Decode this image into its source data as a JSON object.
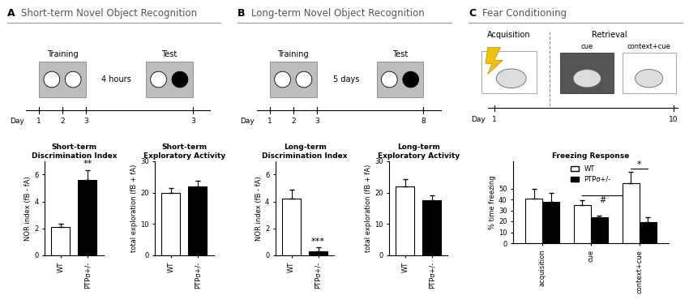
{
  "panels": [
    {
      "letter": "A",
      "title": "Short-term Novel Object Recognition",
      "schematic": {
        "kind": "nor",
        "phases": [
          "Training",
          "Test"
        ],
        "interval": "4 hours",
        "day_label": "Day",
        "days": [
          "1",
          "2",
          "3",
          "3"
        ]
      }
    },
    {
      "letter": "B",
      "title": "Long-term Novel Object Recognition",
      "schematic": {
        "kind": "nor",
        "phases": [
          "Training",
          "Test"
        ],
        "interval": "5 days",
        "day_label": "Day",
        "days": [
          "1",
          "2",
          "3",
          "8"
        ]
      }
    },
    {
      "letter": "C",
      "title": "Fear Conditioning",
      "schematic": {
        "kind": "fear",
        "phases": [
          "Acquisition",
          "Retrieval"
        ],
        "contexts": [
          "cue",
          "context+cue"
        ],
        "day_label": "Day",
        "days": [
          "1",
          "10"
        ]
      }
    }
  ],
  "chart_data": [
    {
      "type": "bar",
      "title": "Short-term\nDiscrimination Index",
      "y_label": "NOR index (fB - fA)",
      "categories": [
        "WT",
        "PTPσ+/-"
      ],
      "values": [
        2.1,
        5.6
      ],
      "errors": [
        0.25,
        0.75
      ],
      "colors": [
        "#ffffff",
        "#000000"
      ],
      "ylim": [
        0,
        7
      ],
      "yticks": [
        0,
        2,
        4,
        6
      ],
      "annotations": [
        {
          "text": "**"
        }
      ]
    },
    {
      "type": "bar",
      "title": "Short-term\nExploratory Activity",
      "y_label": "total exploration (fB + fA)",
      "categories": [
        "WT",
        "PTPσ+/-"
      ],
      "values": [
        20,
        22
      ],
      "errors": [
        1.3,
        1.8
      ],
      "colors": [
        "#ffffff",
        "#000000"
      ],
      "ylim": [
        0,
        30
      ],
      "yticks": [
        0,
        10,
        20,
        30
      ]
    },
    {
      "type": "bar",
      "title": "Long-term\nDiscrimination Index",
      "y_label": "NOR index (fB - fA)",
      "categories": [
        "WT",
        "PTPσ+/-"
      ],
      "values": [
        4.2,
        0.3
      ],
      "errors": [
        0.7,
        0.3
      ],
      "colors": [
        "#ffffff",
        "#000000"
      ],
      "ylim": [
        0,
        7
      ],
      "yticks": [
        0,
        2,
        4,
        6
      ],
      "annotations": [
        {
          "text": "***"
        }
      ]
    },
    {
      "type": "bar",
      "title": "Long-term\nExploratory Activity",
      "y_label": "total exploration (fB + fA)",
      "categories": [
        "WT",
        "PTPσ+/-"
      ],
      "values": [
        22,
        17.5
      ],
      "errors": [
        2.2,
        1.7
      ],
      "colors": [
        "#ffffff",
        "#000000"
      ],
      "ylim": [
        0,
        30
      ],
      "yticks": [
        0,
        10,
        20,
        30
      ]
    },
    {
      "type": "bar",
      "title": "Freezing Response",
      "y_label": "% time freezing",
      "categories": [
        "acquisition",
        "cue",
        "context+cue"
      ],
      "series": [
        {
          "name": "WT",
          "color": "#ffffff",
          "values": [
            41,
            35,
            55
          ],
          "errors": [
            9,
            4,
            10
          ]
        },
        {
          "name": "PTPσ+/-",
          "color": "#000000",
          "values": [
            38,
            24,
            19
          ],
          "errors": [
            8,
            1,
            5
          ]
        }
      ],
      "ylim": [
        0,
        75
      ],
      "yticks": [
        0,
        10,
        20,
        30,
        40,
        50
      ],
      "legend": "upper center",
      "annotations": [
        {
          "text": "#"
        },
        {
          "text": "*"
        }
      ]
    }
  ]
}
